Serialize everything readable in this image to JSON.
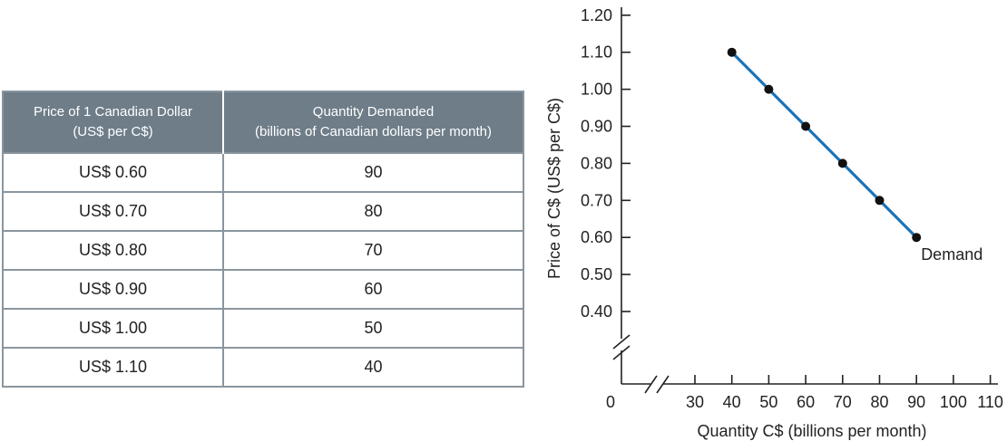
{
  "table": {
    "headers": [
      [
        "Price of 1 Canadian Dollar",
        "(US$ per C$)"
      ],
      [
        "Quantity Demanded",
        "(billions of Canadian dollars per month)"
      ]
    ],
    "rows": [
      [
        "US$ 0.60",
        "90"
      ],
      [
        "US$ 0.70",
        "80"
      ],
      [
        "US$ 0.80",
        "70"
      ],
      [
        "US$ 0.90",
        "60"
      ],
      [
        "US$ 1.00",
        "50"
      ],
      [
        "US$ 1.10",
        "40"
      ]
    ]
  },
  "chart_data": {
    "type": "line",
    "xlabel": "Quantity C$ (billions per month)",
    "ylabel": "Price of C$ (US$ per C$)",
    "x_ticks": [
      30,
      40,
      50,
      60,
      70,
      80,
      90,
      100,
      110
    ],
    "y_ticks": [
      0.4,
      0.5,
      0.6,
      0.7,
      0.8,
      0.9,
      1.0,
      1.1,
      1.2
    ],
    "x_tick_labels": [
      "30",
      "40",
      "50",
      "60",
      "70",
      "80",
      "90",
      "100",
      "110"
    ],
    "y_tick_labels": [
      "0.40",
      "0.50",
      "0.60",
      "0.70",
      "0.80",
      "0.90",
      "1.00",
      "1.10",
      "1.20"
    ],
    "origin_label": "0",
    "xlim": [
      0,
      110
    ],
    "ylim": [
      0,
      1.2
    ],
    "axis_breaks": true,
    "grid": false,
    "series": [
      {
        "name": "Demand",
        "color": "#1a73b8",
        "x": [
          40,
          50,
          60,
          70,
          80,
          90
        ],
        "y": [
          1.1,
          1.0,
          0.9,
          0.8,
          0.7,
          0.6
        ]
      }
    ],
    "point_color": "#111111"
  }
}
